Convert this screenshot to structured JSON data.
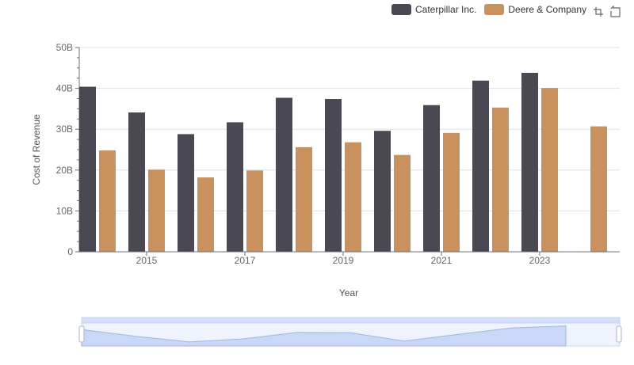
{
  "chart_data": {
    "type": "bar",
    "categories": [
      "2014",
      "2015",
      "2016",
      "2017",
      "2018",
      "2019",
      "2020",
      "2021",
      "2022",
      "2023",
      "2024"
    ],
    "x_tick_labels": [
      "2015",
      "2017",
      "2019",
      "2021",
      "2023"
    ],
    "series": [
      {
        "name": "Caterpillar Inc.",
        "color": "#4a4853",
        "values": [
          40.4,
          34.1,
          28.8,
          31.7,
          37.7,
          37.4,
          29.6,
          35.9,
          41.9,
          43.8,
          null
        ]
      },
      {
        "name": "Deere & Company",
        "color": "#c8915e",
        "values": [
          24.8,
          20.1,
          18.2,
          19.9,
          25.6,
          26.8,
          23.7,
          29.1,
          35.3,
          40.1,
          30.7
        ]
      }
    ],
    "xlabel": "Year",
    "ylabel": "Cost of Revenue",
    "ylim": [
      0,
      50
    ],
    "y_ticks": [
      0,
      10,
      20,
      30,
      40,
      50
    ],
    "y_tick_labels": [
      "0",
      "10B",
      "20B",
      "30B",
      "40B",
      "50B"
    ],
    "grid": true,
    "legend_position": "top-right"
  },
  "toolbar": {
    "icons": [
      "zoom-icon",
      "restore-icon"
    ]
  },
  "colors": {
    "grid": "#e0e0e0",
    "axis": "#6e7079",
    "slider_fill": "#d4e0fb",
    "slider_border": "#c9d4ee"
  }
}
